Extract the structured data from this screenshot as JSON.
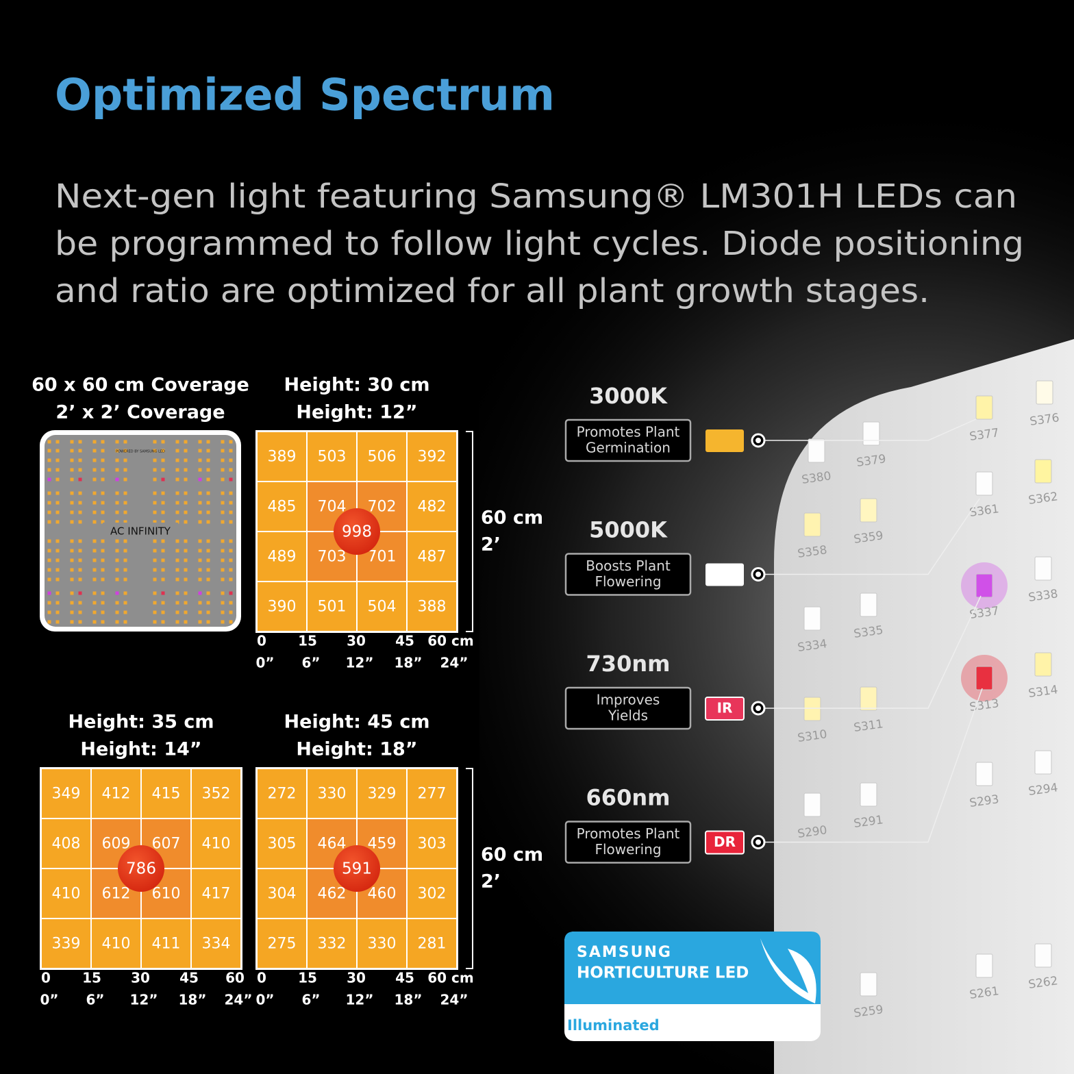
{
  "header": {
    "title": "Optimized Spectrum",
    "description": [
      "Next-gen light featuring Samsung® LM301H LEDs can",
      "be programmed to follow light cycles. Diode positioning",
      "and ratio are optimized for all plant growth stages."
    ]
  },
  "coverage": {
    "heading": [
      "60 x 60 cm Coverage",
      "2’ x 2’ Coverage"
    ],
    "brand": "AC INFINITY",
    "powered": "POWERED BY SAMSUNG LED"
  },
  "grids": [
    {
      "heading": [
        "Height: 30 cm",
        "Height: 12”"
      ],
      "cells": [
        [
          389,
          503,
          506,
          392
        ],
        [
          485,
          704,
          702,
          482
        ],
        [
          489,
          703,
          701,
          487
        ],
        [
          390,
          501,
          504,
          388
        ]
      ],
      "center": 998,
      "axis_cm": [
        "0",
        "15",
        "30",
        "45",
        "60 cm"
      ],
      "axis_in": [
        "0”",
        "6”",
        "12”",
        "18”",
        "24”"
      ],
      "side_label": [
        "60 cm",
        "2’"
      ]
    },
    {
      "heading": [
        "Height: 35 cm",
        "Height: 14”"
      ],
      "cells": [
        [
          349,
          412,
          415,
          352
        ],
        [
          408,
          609,
          607,
          410
        ],
        [
          410,
          612,
          610,
          417
        ],
        [
          339,
          410,
          411,
          334
        ]
      ],
      "center": 786,
      "axis_cm": [
        "0",
        "15",
        "30",
        "45",
        "60"
      ],
      "axis_in": [
        "0”",
        "6”",
        "12”",
        "18”",
        "24”"
      ]
    },
    {
      "heading": [
        "Height: 45 cm",
        "Height: 18”"
      ],
      "cells": [
        [
          272,
          330,
          329,
          277
        ],
        [
          305,
          464,
          459,
          303
        ],
        [
          304,
          462,
          460,
          302
        ],
        [
          275,
          332,
          330,
          281
        ]
      ],
      "center": 591,
      "axis_cm": [
        "0",
        "15",
        "30",
        "45",
        "60 cm"
      ],
      "axis_in": [
        "0”",
        "6”",
        "12”",
        "18”",
        "24”"
      ],
      "side_label": [
        "60 cm",
        "2’"
      ]
    }
  ],
  "spectrum": [
    {
      "heading": "3000K",
      "description": [
        "Promotes Plant",
        "Germination"
      ],
      "color": "#f5b52e"
    },
    {
      "heading": "5000K",
      "description": [
        "Boosts Plant",
        "Flowering"
      ],
      "color": "#ffffff"
    },
    {
      "heading": "730nm",
      "description": [
        "Improves",
        "Yields"
      ],
      "chip": "IR",
      "color": "#e8355a"
    },
    {
      "heading": "660nm",
      "description": [
        "Promotes Plant",
        "Flowering"
      ],
      "chip": "DR",
      "color": "#e8243a"
    }
  ],
  "panel_leds": [
    "S380",
    "S379",
    "S377",
    "S376",
    "S361",
    "S362",
    "S358",
    "S359",
    "S337",
    "S338",
    "S334",
    "S335",
    "S310",
    "S311",
    "S313",
    "S314",
    "S290",
    "S291",
    "S293",
    "S294",
    "S259",
    "S261",
    "S262"
  ],
  "badge": {
    "brand": "SAMSUNG",
    "line": "HORTICULTURE LED",
    "tag": "Illuminated"
  }
}
